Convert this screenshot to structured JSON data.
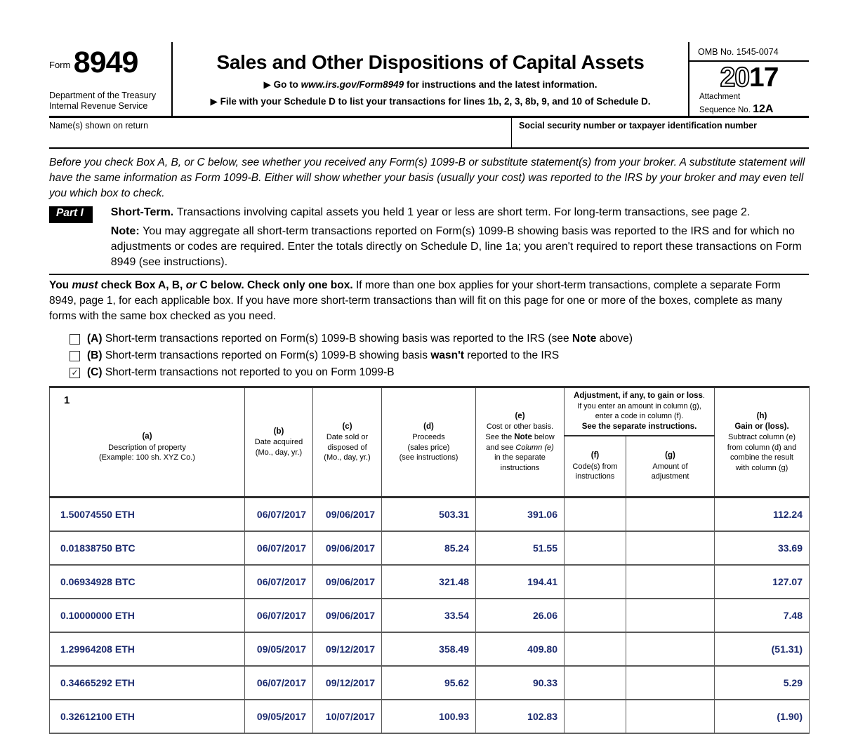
{
  "colors": {
    "data_text": "#1b2a6e",
    "line_dark": "#2e2e2e"
  },
  "check_glyph": "✓",
  "form": {
    "form_label": "Form",
    "form_number": "8949",
    "agency_line1": "Department of the Treasury",
    "agency_line2": "Internal Revenue Service",
    "title": "Sales and Other Dispositions of Capital Assets",
    "instruction_line1": [
      {
        "t": "▶ Go to ",
        "s": "b"
      },
      {
        "t": "www.irs.gov/Form8949",
        "s": "bi"
      },
      {
        "t": " for instructions and the latest information.",
        "s": "b"
      }
    ],
    "instruction_line2": [
      {
        "t": "▶ File with your Schedule D to list your transactions for lines 1b, 2, 3, 8b, 9, and 10 of Schedule D.",
        "s": "b"
      }
    ],
    "omb": "OMB No. 1545-0074",
    "year_outline": "20",
    "year_bold": "17",
    "attachment_line1": "Attachment",
    "attachment_line2": "Sequence No. ",
    "attachment_seq": "12A"
  },
  "identity": {
    "name_label": "Name(s) shown on return",
    "name_value": "",
    "ssn_label": "Social security number or taxpayer identification number",
    "ssn_value": ""
  },
  "intro_italic": "Before you check Box A, B, or C below, see whether you received any Form(s) 1099-B or substitute statement(s) from your broker. A substitute statement will have the same information as Form 1099-B. Either will show whether your basis (usually your cost) was reported to the IRS by your broker and may even tell you which box to check.",
  "part1": {
    "label": "Part I",
    "heading": [
      {
        "t": "Short-Term. ",
        "s": "b"
      },
      {
        "t": "Transactions involving capital assets you held 1 year or less are short term. For long-term transactions, see page 2."
      }
    ],
    "note": [
      {
        "t": "Note: ",
        "s": "b"
      },
      {
        "t": "You may aggregate all short-term transactions reported on Form(s) 1099-B showing basis was reported to the IRS and for which no adjustments or codes are required. Enter the totals directly on Schedule D, line 1a; you aren't required to report these transactions on Form 8949 (see instructions)."
      }
    ]
  },
  "box_instructions": [
    {
      "t": "You ",
      "s": "b"
    },
    {
      "t": "must",
      "s": "bi"
    },
    {
      "t": " check Box A, B, ",
      "s": "b"
    },
    {
      "t": "or",
      "s": "bi"
    },
    {
      "t": " C below. Check only one box. ",
      "s": "b"
    },
    {
      "t": "If more than one box applies for your short-term transactions, complete a separate Form 8949, page 1, for each applicable box. If you have more short-term transactions than will fit on this page for one or more of the boxes, complete as many forms with the same box checked as you need."
    }
  ],
  "checkboxes": [
    {
      "checked": false,
      "segments": [
        {
          "t": "(A) ",
          "s": "b"
        },
        {
          "t": "Short-term transactions reported on Form(s) 1099-B showing basis was reported to the IRS (see "
        },
        {
          "t": "Note",
          "s": "b"
        },
        {
          "t": " above)"
        }
      ]
    },
    {
      "checked": false,
      "segments": [
        {
          "t": "(B) ",
          "s": "b"
        },
        {
          "t": "Short-term transactions reported on Form(s) 1099-B showing basis "
        },
        {
          "t": "wasn't",
          "s": "b"
        },
        {
          "t": " reported to the IRS"
        }
      ]
    },
    {
      "checked": true,
      "segments": [
        {
          "t": "(C) ",
          "s": "b"
        },
        {
          "t": "Short-term transactions not reported to you on Form 1099-B"
        }
      ]
    }
  ],
  "table": {
    "line_number": "1",
    "headers": {
      "a": [
        {
          "t": "(a)\n",
          "s": "b"
        },
        {
          "t": "Description of property\n(Example: 100 sh. XYZ Co.)"
        }
      ],
      "b": [
        {
          "t": "(b)\n",
          "s": "b"
        },
        {
          "t": "Date acquired\n(Mo., day, yr.)"
        }
      ],
      "c": [
        {
          "t": "(c)\n",
          "s": "b"
        },
        {
          "t": "Date sold or\ndisposed of\n(Mo., day, yr.)"
        }
      ],
      "d": [
        {
          "t": "(d)\n",
          "s": "b"
        },
        {
          "t": "Proceeds\n(sales price)\n(see instructions)"
        }
      ],
      "e": [
        {
          "t": "(e)\n",
          "s": "b"
        },
        {
          "t": "Cost or other basis.\nSee the "
        },
        {
          "t": "Note",
          "s": "b"
        },
        {
          "t": " below\nand see "
        },
        {
          "t": "Column (e)",
          "s": "i"
        },
        {
          "t": "\nin the separate\ninstructions"
        }
      ],
      "adjustment": [
        {
          "t": "Adjustment, if any, to gain or loss",
          "s": "b"
        },
        {
          "t": ".\nIf you enter an amount in column (g),\nenter a code in column (f).\n"
        },
        {
          "t": "See the separate instructions.",
          "s": "b"
        }
      ],
      "f": [
        {
          "t": "(f)\n",
          "s": "b"
        },
        {
          "t": "Code(s) from\ninstructions"
        }
      ],
      "g": [
        {
          "t": "(g)\n",
          "s": "b"
        },
        {
          "t": "Amount of\nadjustment"
        }
      ],
      "h": [
        {
          "t": "(h)\n",
          "s": "b"
        },
        {
          "t": "Gain or (loss).\n",
          "s": "b"
        },
        {
          "t": "Subtract column (e)\nfrom column (d) and\ncombine the result\nwith column (g)"
        }
      ]
    },
    "rows": [
      {
        "description": "1.50074550 ETH",
        "date_acquired": "06/07/2017",
        "date_sold": "09/06/2017",
        "proceeds": "503.31",
        "cost": "391.06",
        "code": "",
        "adjustment": "",
        "gain": "112.24"
      },
      {
        "description": "0.01838750 BTC",
        "date_acquired": "06/07/2017",
        "date_sold": "09/06/2017",
        "proceeds": "85.24",
        "cost": "51.55",
        "code": "",
        "adjustment": "",
        "gain": "33.69"
      },
      {
        "description": "0.06934928 BTC",
        "date_acquired": "06/07/2017",
        "date_sold": "09/06/2017",
        "proceeds": "321.48",
        "cost": "194.41",
        "code": "",
        "adjustment": "",
        "gain": "127.07"
      },
      {
        "description": "0.10000000 ETH",
        "date_acquired": "06/07/2017",
        "date_sold": "09/06/2017",
        "proceeds": "33.54",
        "cost": "26.06",
        "code": "",
        "adjustment": "",
        "gain": "7.48"
      },
      {
        "description": "1.29964208 ETH",
        "date_acquired": "09/05/2017",
        "date_sold": "09/12/2017",
        "proceeds": "358.49",
        "cost": "409.80",
        "code": "",
        "adjustment": "",
        "gain": "(51.31)"
      },
      {
        "description": "0.34665292 ETH",
        "date_acquired": "06/07/2017",
        "date_sold": "09/12/2017",
        "proceeds": "95.62",
        "cost": "90.33",
        "code": "",
        "adjustment": "",
        "gain": "5.29"
      },
      {
        "description": "0.32612100 ETH",
        "date_acquired": "09/05/2017",
        "date_sold": "10/07/2017",
        "proceeds": "100.93",
        "cost": "102.83",
        "code": "",
        "adjustment": "",
        "gain": "(1.90)"
      }
    ]
  }
}
